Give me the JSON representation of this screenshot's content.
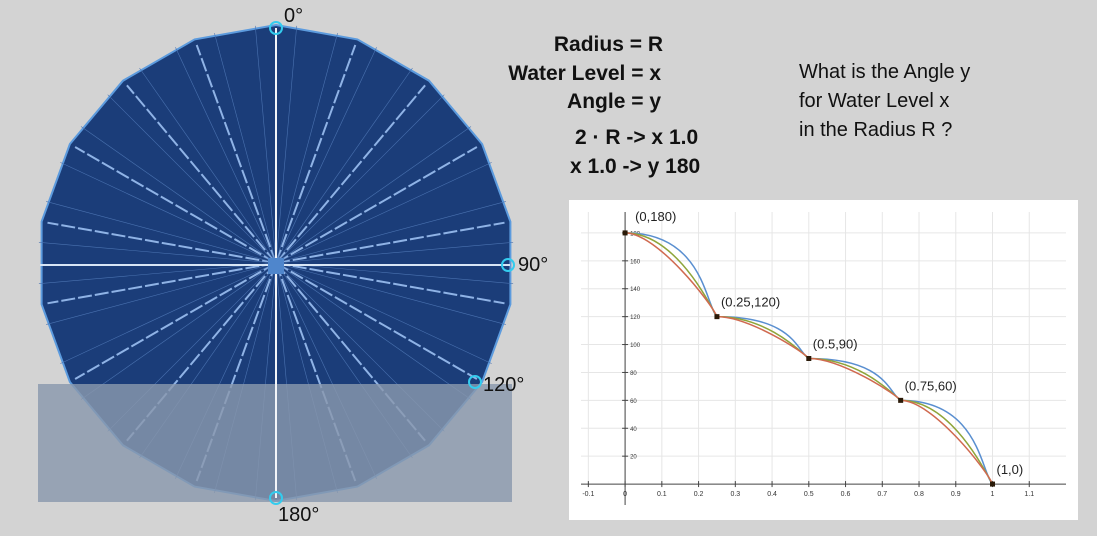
{
  "angles": {
    "top": "0°",
    "right": "90°",
    "lower_right": "120°",
    "bottom": "180°"
  },
  "definitions": [
    "Radius = R",
    "Water Level = x",
    "Angle = y"
  ],
  "ratios": [
    "2 · R -> x 1.0",
    "x 1.0 -> y 180"
  ],
  "question": [
    "What is the Angle y",
    "for Water Level x",
    "in the Radius R ?"
  ],
  "colors": {
    "background": "#d3d3d3",
    "circle_fill": "#1b3d79",
    "circle_edge": "#5c9bde",
    "water": "#8a99ad",
    "marker": "#33ccee"
  },
  "chart_data": {
    "type": "line",
    "x_ticks": [
      "-0.1",
      "0",
      "0.1",
      "0.2",
      "0.3",
      "0.4",
      "0.5",
      "0.6",
      "0.7",
      "0.8",
      "0.9",
      "1",
      "1.1"
    ],
    "y_ticks": [
      "20",
      "40",
      "60",
      "80",
      "100",
      "120",
      "140",
      "160",
      "180"
    ],
    "xlim": [
      -0.12,
      1.2
    ],
    "ylim": [
      -15,
      195
    ],
    "key_points": [
      {
        "x": 0,
        "y": 180,
        "label": "(0,180)"
      },
      {
        "x": 0.25,
        "y": 120,
        "label": "(0.25,120)"
      },
      {
        "x": 0.5,
        "y": 90,
        "label": "(0.5,90)"
      },
      {
        "x": 0.75,
        "y": 60,
        "label": "(0.75,60)"
      },
      {
        "x": 1,
        "y": 0,
        "label": "(1,0)"
      }
    ],
    "series": [
      {
        "color": "#5a8fd0",
        "sharpness": 0.85
      },
      {
        "color": "#8fa53a",
        "sharpness": 0.55
      },
      {
        "color": "#d06a50",
        "sharpness": 0.35
      }
    ],
    "grid": true
  }
}
